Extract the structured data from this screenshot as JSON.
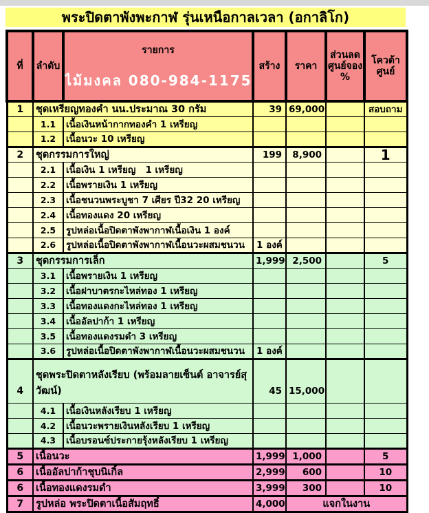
{
  "page": {
    "title": "พระปิดตาพังพะกาฬ รุ่นเหนือกาลเวลา (อกาลิโก)"
  },
  "header": {
    "col_no": "ที่",
    "col_order": "ลำดับ",
    "col_item": "รายการ",
    "watermark": "ไม้มงคล 080-984-1175",
    "col_made": "สร้าง",
    "col_price": "ราคา",
    "col_discount": "ส่วนลด\nศูนย์จอง\n%",
    "col_quota": "โควต้า\nศูนย์"
  },
  "colors": {
    "title_bg": "#ffff7e",
    "header_bg": "#f68a8a",
    "group1_bg": "#ffff9c",
    "group2_bg": "#ffffd8",
    "group3_bg": "#d2f8d2",
    "pink_bg": "#fb9cca",
    "border": "#000000",
    "watermark_text": "#ffffff"
  },
  "rows": [
    {
      "type": "main",
      "group": "g1",
      "top": true,
      "no": "1",
      "item": "ชุดเหรียญทองคำ นน.ประมาณ 30 กรัม",
      "made": "39",
      "price": "69,000",
      "discount": "",
      "quota": "สอบถาม"
    },
    {
      "type": "sub",
      "group": "g1",
      "sub": "1.1",
      "item": "เนื้อเงินหน้ากากทองคำ  1 เหรียญ"
    },
    {
      "type": "sub",
      "group": "g1",
      "sub": "1.2",
      "item": "เนื้อนวะ 10 เหรียญ"
    },
    {
      "type": "main",
      "group": "g2",
      "top": true,
      "no": "2",
      "item": "ชุดกรรมการใหญ่",
      "made": "199",
      "price": "8,900",
      "discount": "",
      "quota": "1",
      "quota_big": true
    },
    {
      "type": "sub",
      "group": "g2",
      "sub": "2.1",
      "item": "เนื้อเงิน 1 เหรียญ   1 เหรียญ"
    },
    {
      "type": "sub",
      "group": "g2",
      "sub": "2.2",
      "item": "เนื้อพรายเงิน 1 เหรียญ"
    },
    {
      "type": "sub",
      "group": "g2",
      "sub": "2.3",
      "item": "เนื้อชนวนพระบูชา 7 เศียร ปี32  20 เหรียญ"
    },
    {
      "type": "sub",
      "group": "g2",
      "sub": "2.4",
      "item": "เนื้อทองแดง 20 เหรียญ"
    },
    {
      "type": "sub",
      "group": "g2",
      "sub": "2.5",
      "item": "รูปหล่อเนื้อปิดตาพังพากาฬเนื้อเงิน 1 องค์"
    },
    {
      "type": "sub",
      "group": "g2",
      "sub": "2.6",
      "item": "รูปหล่อเนื้อปิดตาพังพากาฬเนื้อนวะผสมชนวน",
      "made": "1 องค์",
      "made_left": true
    },
    {
      "type": "main",
      "group": "g3",
      "top": true,
      "no": "3",
      "item": "ชุดกรรมการเล็ก",
      "made": "1,999",
      "price": "2,500",
      "discount": "",
      "quota": "5"
    },
    {
      "type": "sub",
      "group": "g3",
      "sub": "3.1",
      "item": "เนื้อพรายเงิน 1 เหรียญ"
    },
    {
      "type": "sub",
      "group": "g3",
      "sub": "3.2",
      "item": "เนื้อฝาบาตรกะไหล่ทอง 1 เหรียญ"
    },
    {
      "type": "sub",
      "group": "g3",
      "sub": "3.3",
      "item": "เนื้อทองแดงกะไหล่ทอง 1 เหรียญ"
    },
    {
      "type": "sub",
      "group": "g3",
      "sub": "3.4",
      "item": "เนื้ออัลปาก้า 1 เหรียญ"
    },
    {
      "type": "sub",
      "group": "g3",
      "sub": "3.5",
      "item": "เนื้อทองแดงรมดำ  3 เหรียญ"
    },
    {
      "type": "sub",
      "group": "g3",
      "sub": "3.6",
      "item": "รูปหล่อเนื้อปิดตาพังพากาฬเนื้อนวะผสมชนวน",
      "made": "1 องค์",
      "made_left": true
    },
    {
      "type": "main",
      "group": "g4",
      "top": true,
      "tall": true,
      "no": "4",
      "item": "ชุดพระปิดตาหลังเรียบ (พร้อมลายเซ็นต์ อาจารย์สุวัฒน์)",
      "made": "45",
      "price": "15,000",
      "discount": "",
      "quota": ""
    },
    {
      "type": "sub",
      "group": "g4",
      "sub": "4.1",
      "item": "เนื้อเงินหลังเรียบ  1 เหรียญ"
    },
    {
      "type": "sub",
      "group": "g4",
      "sub": "4.2",
      "item": "เนื้อนวะพรายเงินหลังเรียบ 1 เหรียญ"
    },
    {
      "type": "sub",
      "group": "g4",
      "sub": "4.3",
      "item": "เนื้อบรอนซ์ประกายรุ้งหลังเรียบ 1 เหรียญ"
    },
    {
      "type": "main",
      "group": "pink",
      "top": true,
      "no": "5",
      "item": "เนื้อนวะ",
      "made": "1,999",
      "price": "1,000",
      "discount": "",
      "quota": "5"
    },
    {
      "type": "main",
      "group": "pink",
      "top": true,
      "no": "6",
      "item": "เนื้ออัลปาก้าชุบนิเกิ้ล",
      "made": "2,999",
      "price": "600",
      "discount": "",
      "quota": "10"
    },
    {
      "type": "main",
      "group": "pink",
      "top": true,
      "no": "6",
      "item": "เนื้อทองแดงรมดำ",
      "made": "3,999",
      "price": "300",
      "discount": "",
      "quota": "10"
    },
    {
      "type": "main",
      "group": "pink",
      "top": true,
      "no": "7",
      "item": "รูปหล่อ พระปิดตาเนื้อสัมฤทธิ์",
      "made": "4,000",
      "merged": "แจกในงาน"
    }
  ]
}
